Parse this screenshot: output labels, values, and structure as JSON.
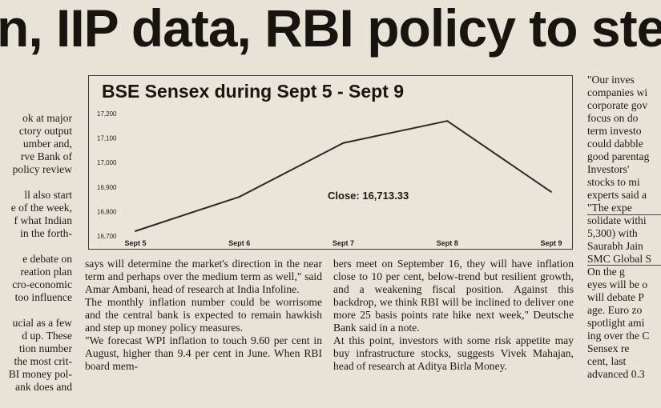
{
  "headline": "n, IIP data, RBI policy to steer",
  "col_left": "ok at major\nctory output\number and,\nrve Bank of\npolicy review\n\nll also start\ne of the week,\nf what Indian\nin the forth-\n\ne debate on\nreation plan\ncro-economic\ntoo influence\n\nucial as a few\nd up. These\ntion number\nthe most crit-\nBI money pol-\nank does and",
  "col_mid1": "says will determine the market's direction in the near term and perhaps over the medium term as well,\" said Amar Ambani, head of research at India Infoline.\n    The monthly inflation number could be worrisome and the central bank is expected to remain hawkish and step up money policy measures.\n    \"We forecast WPI inflation to touch 9.60 per cent in August, higher than 9.4 per cent in June. When RBI board mem-",
  "col_mid2": "bers meet on September 16, they will have inflation close to 10 per cent, below-trend but resilient growth, and a weakening fiscal position. Against this backdrop, we think RBI will be inclined to deliver one more 25 basis points rate hike next week,\" Deutsche Bank said in a note.\n    At this point, investors with some risk appetite may buy infrastructure stocks, suggests Vivek Mahajan, head of research at Aditya Birla Money.",
  "col_right": "   \"Our inves\ncompanies wi\ncorporate gov\nfocus on do\nterm investo\ncould dabble\ngood parentag\n   Investors'\nstocks to mi\nexperts said a\n   \"The expe\nsolidate withi\n5,300) with\nSaurabh Jain\nSMC Global S\n   On the g\neyes will be o\nwill debate P\nage. Euro zo\nspotlight ami\ning over the C\n   Sensex re\ncent, last\nadvanced 0.3",
  "chart_data": {
    "type": "line",
    "title": "BSE Sensex during Sept 5 - Sept 9",
    "categories": [
      "Sept 5",
      "Sept 6",
      "Sept 7",
      "Sept 8",
      "Sept 9"
    ],
    "values": [
      16720,
      16860,
      17080,
      17170,
      16880
    ],
    "ylim": [
      16700,
      17200
    ],
    "yticks": [
      "16,700",
      "16,800",
      "16,900",
      "17,000",
      "17,100",
      "17,200"
    ],
    "annotation": "Close: 16,713.33",
    "grid": false,
    "line_color": "#2b2a26"
  }
}
